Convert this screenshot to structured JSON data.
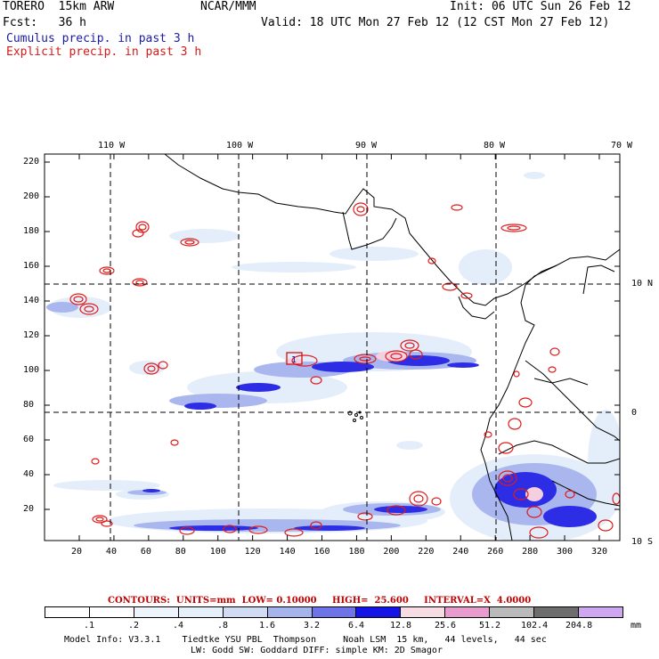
{
  "header": {
    "model": "TORERO  15km ARW",
    "center": "NCAR/MMM",
    "init": "Init: 06 UTC Sun 26 Feb 12",
    "fcst": "Fcst:   36 h",
    "valid": "Valid: 18 UTC Mon 27 Feb 12 (12 CST Mon 27 Feb 12)",
    "legend_cumulus": "Cumulus precip. in past 3 h",
    "legend_explicit": "Explicit precip. in past 3 h"
  },
  "map": {
    "lon_labels": [
      "110 W",
      "100 W",
      "90 W",
      "80 W",
      "70 W"
    ],
    "lat_labels": [
      "10 N",
      "0",
      "10 S"
    ],
    "y_ticks": [
      "220",
      "200",
      "180",
      "160",
      "140",
      "120",
      "100",
      "80",
      "60",
      "40",
      "20"
    ],
    "x_ticks": [
      "20",
      "40",
      "60",
      "80",
      "100",
      "120",
      "140",
      "160",
      "180",
      "200",
      "220",
      "240",
      "260",
      "280",
      "300",
      "320"
    ],
    "marker_label": "1"
  },
  "contours": {
    "units_label": "CONTOURS:  UNITS=mm  LOW= 0.10000     HIGH=  25.600     INTERVAL=X  4.0000"
  },
  "colorbar": {
    "labels": [
      ".1",
      ".2",
      ".4",
      ".8",
      "1.6",
      "3.2",
      "6.4",
      "12.8",
      "25.6",
      "51.2",
      "102.4",
      "204.8"
    ],
    "unit": "mm",
    "colors": [
      "#ffffff",
      "#ffffff",
      "#eef4fb",
      "#e6f0fa",
      "#cfdcf4",
      "#a6b4ec",
      "#6d74e8",
      "#1414e6",
      "#f7dde3",
      "#e79ccd",
      "#bababa",
      "#6d6d6d",
      "#cfa6f0"
    ]
  },
  "footer": {
    "line1": "Model Info: V3.3.1    Tiedtke YSU PBL  Thompson     Noah LSM  15 km,   44 levels,   44 sec",
    "line2": "LW: Godd SW: Goddard DIFF: simple KM: 2D Smagor"
  }
}
